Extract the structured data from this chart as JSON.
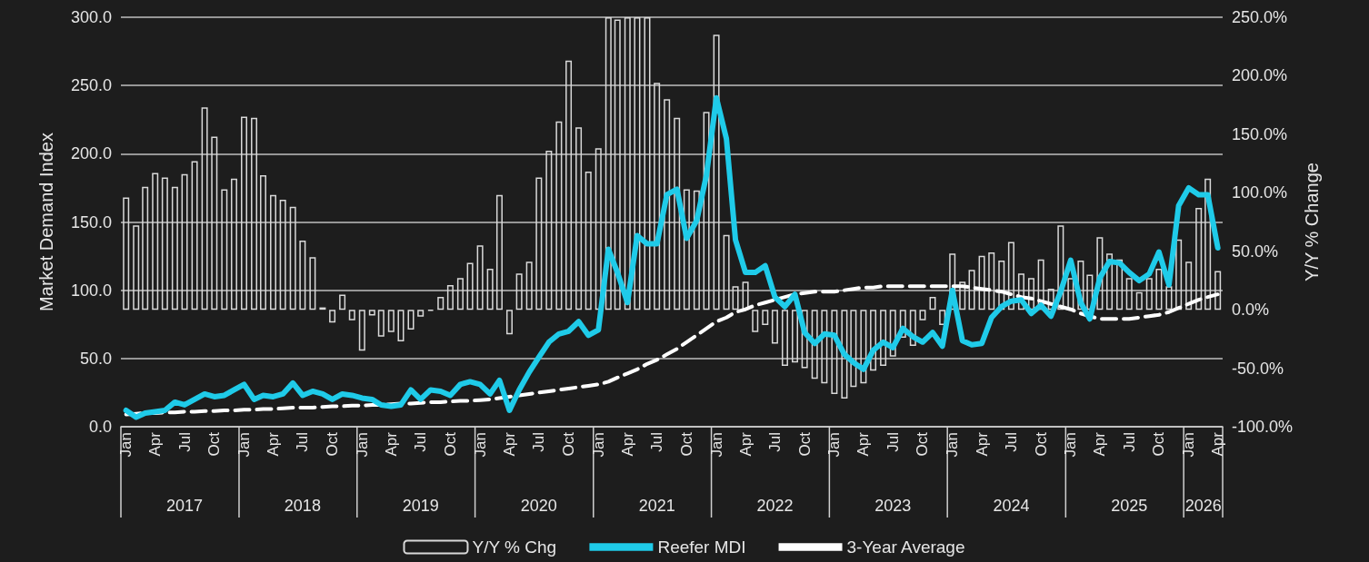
{
  "chart_data": {
    "type": "bar",
    "ylabel": "Market Demand Index",
    "y2label": "Y/Y % Change",
    "x": [
      "2017-01",
      "2017-02",
      "2017-03",
      "2017-04",
      "2017-05",
      "2017-06",
      "2017-07",
      "2017-08",
      "2017-09",
      "2017-10",
      "2017-11",
      "2017-12",
      "2018-01",
      "2018-02",
      "2018-03",
      "2018-04",
      "2018-05",
      "2018-06",
      "2018-07",
      "2018-08",
      "2018-09",
      "2018-10",
      "2018-11",
      "2018-12",
      "2019-01",
      "2019-02",
      "2019-03",
      "2019-04",
      "2019-05",
      "2019-06",
      "2019-07",
      "2019-08",
      "2019-09",
      "2019-10",
      "2019-11",
      "2019-12",
      "2020-01",
      "2020-02",
      "2020-03",
      "2020-04",
      "2020-05",
      "2020-06",
      "2020-07",
      "2020-08",
      "2020-09",
      "2020-10",
      "2020-11",
      "2020-12",
      "2021-01",
      "2021-02",
      "2021-03",
      "2021-04",
      "2021-05",
      "2021-06",
      "2021-07",
      "2021-08",
      "2021-09",
      "2021-10",
      "2021-11",
      "2021-12",
      "2022-01",
      "2022-02",
      "2022-03",
      "2022-04",
      "2022-05",
      "2022-06",
      "2022-07",
      "2022-08",
      "2022-09",
      "2022-10",
      "2022-11",
      "2022-12",
      "2023-01",
      "2023-02",
      "2023-03",
      "2023-04",
      "2023-05",
      "2023-06",
      "2023-07",
      "2023-08",
      "2023-09",
      "2023-10",
      "2023-11",
      "2023-12",
      "2024-01",
      "2024-02",
      "2024-03",
      "2024-04",
      "2024-05",
      "2024-06",
      "2024-07",
      "2024-08",
      "2024-09",
      "2024-10",
      "2024-11",
      "2024-12",
      "2025-01",
      "2025-02",
      "2025-03",
      "2025-04",
      "2025-05",
      "2025-06",
      "2025-07",
      "2025-08",
      "2025-09",
      "2025-10",
      "2025-11",
      "2025-12",
      "2026-01",
      "2026-02",
      "2026-03",
      "2026-04"
    ],
    "xlim": [
      "2016-12-16",
      "2026-04-16"
    ],
    "xticks": [
      {
        "value": "2017-01",
        "label": "Jan"
      },
      {
        "value": "2017-04",
        "label": "Apr"
      },
      {
        "value": "2017-07",
        "label": "Jul"
      },
      {
        "value": "2017-10",
        "label": "Oct"
      },
      {
        "value": "2018-01",
        "label": "Jan"
      },
      {
        "value": "2018-04",
        "label": "Apr"
      },
      {
        "value": "2018-07",
        "label": "Jul"
      },
      {
        "value": "2018-10",
        "label": "Oct"
      },
      {
        "value": "2019-01",
        "label": "Jan"
      },
      {
        "value": "2019-04",
        "label": "Apr"
      },
      {
        "value": "2019-07",
        "label": "Jul"
      },
      {
        "value": "2019-10",
        "label": "Oct"
      },
      {
        "value": "2020-01",
        "label": "Jan"
      },
      {
        "value": "2020-04",
        "label": "Apr"
      },
      {
        "value": "2020-07",
        "label": "Jul"
      },
      {
        "value": "2020-10",
        "label": "Oct"
      },
      {
        "value": "2021-01",
        "label": "Jan"
      },
      {
        "value": "2021-04",
        "label": "Apr"
      },
      {
        "value": "2021-07",
        "label": "Jul"
      },
      {
        "value": "2021-10",
        "label": "Oct"
      },
      {
        "value": "2022-01",
        "label": "Jan"
      },
      {
        "value": "2022-04",
        "label": "Apr"
      },
      {
        "value": "2022-07",
        "label": "Jul"
      },
      {
        "value": "2022-10",
        "label": "Oct"
      },
      {
        "value": "2023-01",
        "label": "Jan"
      },
      {
        "value": "2023-04",
        "label": "Apr"
      },
      {
        "value": "2023-07",
        "label": "Jul"
      },
      {
        "value": "2023-10",
        "label": "Oct"
      },
      {
        "value": "2024-01",
        "label": "Jan"
      },
      {
        "value": "2024-04",
        "label": "Apr"
      },
      {
        "value": "2024-07",
        "label": "Jul"
      },
      {
        "value": "2024-10",
        "label": "Oct"
      },
      {
        "value": "2025-01",
        "label": "Jan"
      },
      {
        "value": "2025-04",
        "label": "Apr"
      },
      {
        "value": "2025-07",
        "label": "Jul"
      },
      {
        "value": "2025-10",
        "label": "Oct"
      },
      {
        "value": "2026-01",
        "label": "Jan"
      },
      {
        "value": "2026-04",
        "label": "Apr"
      }
    ],
    "x2lim": [
      "2016-12-16",
      "2026-04-16"
    ],
    "x2ticks": [
      {
        "value": "2017-07",
        "label": "2017"
      },
      {
        "value": "2018-07",
        "label": "2018"
      },
      {
        "value": "2019-07",
        "label": "2019"
      },
      {
        "value": "2020-07",
        "label": "2020"
      },
      {
        "value": "2021-07",
        "label": "2021"
      },
      {
        "value": "2022-07",
        "label": "2022"
      },
      {
        "value": "2023-07",
        "label": "2023"
      },
      {
        "value": "2024-07",
        "label": "2024"
      },
      {
        "value": "2025-07",
        "label": "2025"
      },
      {
        "value": "2026-02-15",
        "label": "2026"
      }
    ],
    "ylim": [
      0,
      300
    ],
    "yticks": [
      {
        "value": 0,
        "label": "0.0"
      },
      {
        "value": 50,
        "label": "50.0"
      },
      {
        "value": 100,
        "label": "100.0"
      },
      {
        "value": 150,
        "label": "150.0"
      },
      {
        "value": 200,
        "label": "200.0"
      },
      {
        "value": 250,
        "label": "250.0"
      },
      {
        "value": 300,
        "label": "300.0"
      }
    ],
    "y2lim": [
      -100,
      250
    ],
    "y2ticks": [
      {
        "value": -100,
        "label": "-100.0%"
      },
      {
        "value": -50,
        "label": "-50.0%"
      },
      {
        "value": 0,
        "label": "0.0%"
      },
      {
        "value": 50,
        "label": "50.0%"
      },
      {
        "value": 100,
        "label": "100.0%"
      },
      {
        "value": 150,
        "label": "150.0%"
      },
      {
        "value": 200,
        "label": "200.0%"
      },
      {
        "value": 250,
        "label": "250.0%"
      }
    ],
    "grid": "y",
    "legend": "bottom",
    "marker": "none",
    "series": [
      {
        "name": "Y/Y % Chg",
        "axis": "y2",
        "color": "#d9d9d9",
        "values": [
          96,
          72,
          105,
          117,
          113,
          105,
          116,
          127,
          173,
          148,
          103,
          112,
          165,
          164,
          115,
          98,
          94,
          88,
          59,
          45,
          2,
          -11,
          13,
          -9,
          -35,
          -5,
          -23,
          -19,
          -27,
          -17,
          -6,
          -1,
          11,
          21,
          27,
          40,
          55,
          35,
          98,
          -21,
          31,
          41,
          113,
          136,
          161,
          213,
          156,
          118,
          138,
          250,
          248,
          250,
          250,
          250,
          194,
          180,
          164,
          103,
          102,
          169,
          235,
          64,
          20,
          24,
          -19,
          -13,
          -29,
          -48,
          -45,
          -50,
          -59,
          -63,
          -72,
          -76,
          -66,
          -63,
          -52,
          -48,
          -40,
          -24,
          -31,
          -9,
          11,
          -13,
          48,
          24,
          34,
          46,
          49,
          42,
          58,
          31,
          27,
          43,
          18,
          72,
          27,
          42,
          30,
          62,
          48,
          43,
          27,
          15,
          27,
          35,
          20,
          60,
          41,
          87,
          112,
          33
        ]
      },
      {
        "name": "Reefer MDI",
        "type": "line",
        "color": "#1fcbe9",
        "line_style": "solid",
        "values": [
          12,
          7,
          10,
          11,
          12,
          18,
          16,
          20,
          24,
          22,
          23,
          27,
          31,
          20,
          23,
          22,
          24,
          32,
          23,
          26,
          24,
          20,
          24,
          23,
          21,
          20,
          16,
          15,
          16,
          27,
          20,
          27,
          26,
          23,
          31,
          33,
          31,
          24,
          34,
          12,
          27,
          40,
          51,
          62,
          68,
          70,
          77,
          67,
          71,
          130,
          113,
          91,
          140,
          134,
          134,
          170,
          174,
          138,
          151,
          184,
          241,
          211,
          137,
          113,
          113,
          118,
          95,
          88,
          97,
          69,
          61,
          68,
          67,
          53,
          47,
          42,
          56,
          62,
          58,
          72,
          66,
          62,
          69,
          59,
          100,
          63,
          60,
          61,
          80,
          88,
          92,
          93,
          83,
          89,
          81,
          99,
          122,
          91,
          79,
          109,
          121,
          120,
          113,
          107,
          112,
          128,
          104,
          162,
          175,
          170,
          170,
          131
        ]
      },
      {
        "name": "3-Year Average",
        "type": "line",
        "color": "#ffffff",
        "line_style": "dashed",
        "values": [
          9,
          9.5,
          10,
          10,
          10.5,
          10.5,
          11,
          11,
          11.5,
          11.5,
          12,
          12,
          12.5,
          12.5,
          13,
          13,
          13.5,
          14,
          14,
          14,
          14.5,
          15,
          15,
          15.5,
          15.5,
          16,
          16,
          16.5,
          17,
          17,
          17.5,
          18,
          18,
          18.5,
          19,
          19,
          19.5,
          20,
          21,
          22,
          23,
          24,
          25,
          26,
          27,
          28,
          29,
          30,
          31,
          33,
          36,
          39,
          42,
          46,
          49,
          53,
          57,
          62,
          67,
          72,
          77,
          80,
          84,
          86,
          89,
          91,
          93,
          95,
          97,
          98,
          99,
          99,
          99,
          100,
          101,
          102,
          102,
          103,
          103,
          103,
          103,
          103,
          103,
          103,
          103,
          103,
          102,
          101,
          100,
          99,
          97,
          95,
          94,
          92,
          90,
          88,
          86,
          83,
          81,
          79,
          79,
          79,
          79,
          80,
          81,
          82,
          84,
          87,
          90,
          93,
          95,
          97
        ]
      }
    ]
  }
}
